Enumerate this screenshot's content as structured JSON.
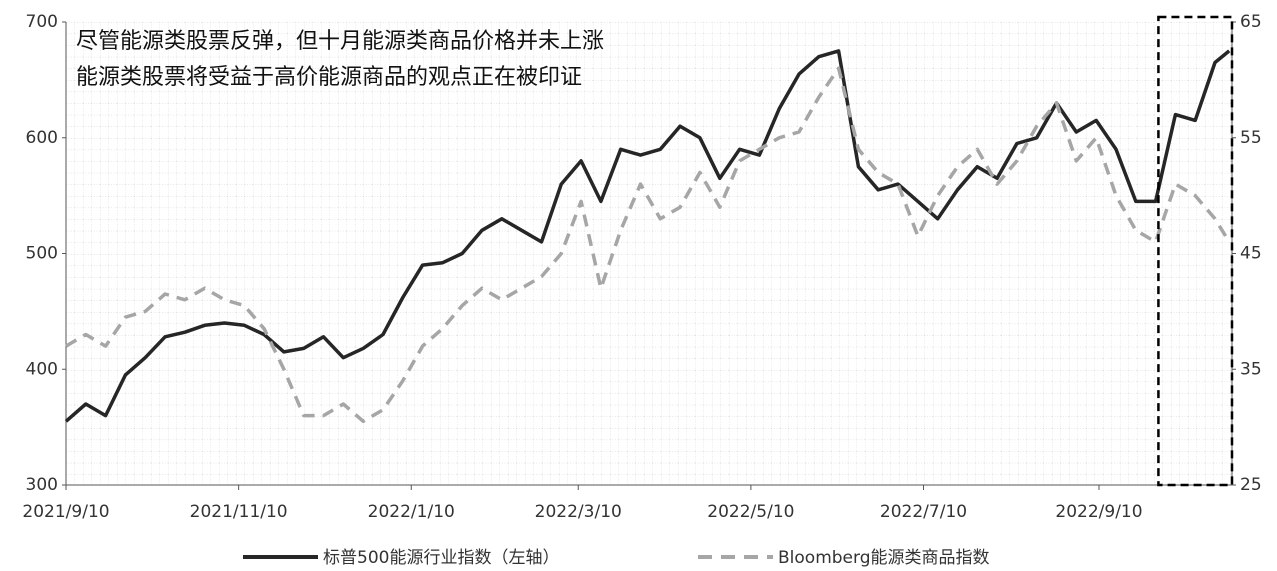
{
  "chart_data": {
    "type": "line",
    "annotations": [
      "尽管能源类股票反弹，但十月能源类商品价格并未上涨",
      "能源类股票将受益于高价能源商品的观点正在被印证"
    ],
    "x": [
      "2021/9/10",
      "2021/9/17",
      "2021/9/24",
      "2021/10/1",
      "2021/10/8",
      "2021/10/15",
      "2021/10/22",
      "2021/10/29",
      "2021/11/5",
      "2021/11/12",
      "2021/11/19",
      "2021/11/26",
      "2021/12/3",
      "2021/12/10",
      "2021/12/17",
      "2021/12/24",
      "2021/12/31",
      "2022/1/7",
      "2022/1/14",
      "2022/1/21",
      "2022/1/28",
      "2022/2/4",
      "2022/2/11",
      "2022/2/18",
      "2022/2/25",
      "2022/3/4",
      "2022/3/11",
      "2022/3/18",
      "2022/3/25",
      "2022/4/1",
      "2022/4/8",
      "2022/4/15",
      "2022/4/22",
      "2022/4/29",
      "2022/5/6",
      "2022/5/13",
      "2022/5/20",
      "2022/5/27",
      "2022/6/3",
      "2022/6/10",
      "2022/6/17",
      "2022/6/24",
      "2022/7/1",
      "2022/7/8",
      "2022/7/15",
      "2022/7/22",
      "2022/7/29",
      "2022/8/5",
      "2022/8/12",
      "2022/8/19",
      "2022/8/26",
      "2022/9/2",
      "2022/9/9",
      "2022/9/16",
      "2022/9/23",
      "2022/9/30",
      "2022/10/7",
      "2022/10/14",
      "2022/10/21",
      "2022/10/26"
    ],
    "series": [
      {
        "name": "标普500能源行业指数（左轴）",
        "color": "#262626",
        "dash": "solid",
        "values": [
          355,
          370,
          360,
          395,
          410,
          428,
          432,
          438,
          440,
          438,
          430,
          415,
          418,
          428,
          410,
          418,
          430,
          462,
          490,
          492,
          500,
          520,
          530,
          520,
          510,
          560,
          580,
          545,
          590,
          585,
          590,
          610,
          600,
          565,
          590,
          585,
          625,
          655,
          670,
          675,
          575,
          555,
          560,
          545,
          530,
          555,
          575,
          565,
          595,
          600,
          630,
          605,
          615,
          590,
          545,
          545,
          620,
          615,
          665,
          675
        ]
      },
      {
        "name": "Bloomberg能源类商品指数",
        "color": "#a6a6a6",
        "dash": "dashed",
        "axis": "y2",
        "values": [
          37,
          38,
          37,
          39.5,
          40,
          41.5,
          41,
          42,
          41,
          40.5,
          38.5,
          35,
          31,
          31,
          32,
          30.5,
          31.5,
          34,
          37,
          38.5,
          40.5,
          42,
          41,
          42,
          43,
          45,
          49.5,
          42,
          47,
          51,
          48,
          49,
          52,
          49,
          53,
          54,
          55,
          55.5,
          58.5,
          61,
          54,
          52,
          51,
          46.5,
          50,
          52.5,
          54,
          51,
          53,
          56,
          58,
          53,
          55,
          50,
          47,
          46,
          51,
          50,
          48,
          46
        ]
      }
    ],
    "xlim": [
      "2021/9/10",
      "2022/10/27"
    ],
    "xticks": [
      "2021/9/10",
      "2021/11/10",
      "2022/1/10",
      "2022/3/10",
      "2022/5/10",
      "2022/7/10",
      "2022/9/10"
    ],
    "ylim": [
      300,
      700
    ],
    "yticks": [
      300,
      400,
      500,
      600,
      700
    ],
    "y2lim": [
      25,
      65
    ],
    "y2ticks": [
      25,
      35,
      45,
      55,
      65
    ],
    "highlight_range": [
      "2022/10/1",
      "2022/10/27"
    ],
    "grid": true,
    "legend": "bottom"
  }
}
